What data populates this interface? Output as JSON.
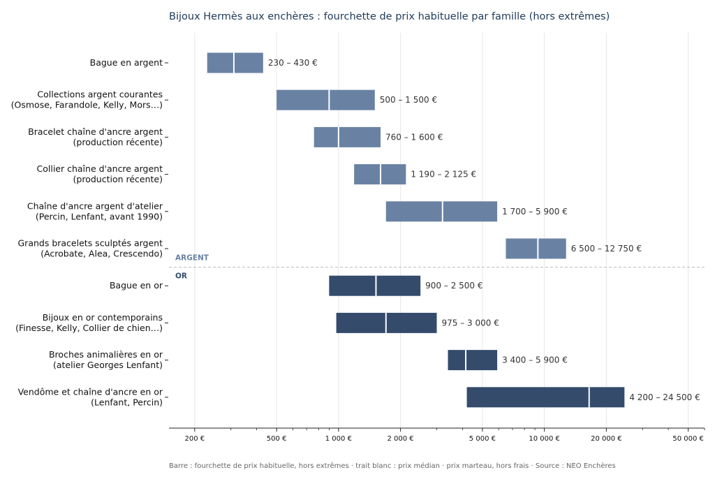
{
  "chart_data": {
    "type": "bar",
    "orientation": "horizontal-range",
    "title": "Bijoux Hermès aux enchères : fourchette de prix habituelle par famille (hors extrêmes)",
    "footer": "Barre : fourchette de prix habituelle, hors extrêmes · trait blanc : prix médian · prix marteau, hors frais · Source : NEO Enchères",
    "x_scale": "log",
    "xlim": [
      150,
      60000
    ],
    "x_ticks": [
      200,
      500,
      1000,
      2000,
      5000,
      10000,
      20000,
      50000
    ],
    "x_tick_labels": [
      "200 €",
      "500 €",
      "1 000 €",
      "2 000 €",
      "5 000 €",
      "10 000 €",
      "20 000 €",
      "50 000 €"
    ],
    "grid": "vertical, at major ticks",
    "colors": {
      "argent": "#6982a4",
      "or": "#344b6c",
      "median": "#ffffff",
      "grid": "#e6e6e6",
      "separator": "#bbbbbb"
    },
    "groups": [
      {
        "name": "ARGENT",
        "color": "#6982a4",
        "items": [
          {
            "label": [
              "Bague en argent"
            ],
            "low": 230,
            "high": 430,
            "median": 310,
            "value_label": "230 – 430 €"
          },
          {
            "label": [
              "Collections argent courantes",
              "(Osmose, Farandole, Kelly, Mors…)"
            ],
            "low": 500,
            "high": 1500,
            "median": 900,
            "value_label": "500 – 1 500 €"
          },
          {
            "label": [
              "Bracelet chaîne d'ancre argent",
              "(production récente)"
            ],
            "low": 760,
            "high": 1600,
            "median": 1000,
            "value_label": "760 – 1 600 €"
          },
          {
            "label": [
              "Collier chaîne d'ancre argent",
              "(production récente)"
            ],
            "low": 1190,
            "high": 2125,
            "median": 1600,
            "value_label": "1 190 – 2 125 €"
          },
          {
            "label": [
              "Chaîne d'ancre argent d'atelier",
              "(Percin, Lenfant, avant 1990)"
            ],
            "low": 1700,
            "high": 5900,
            "median": 3200,
            "value_label": "1 700 – 5 900 €"
          },
          {
            "label": [
              "Grands bracelets sculptés argent",
              "(Acrobate, Alea, Crescendo)"
            ],
            "low": 6500,
            "high": 12750,
            "median": 9300,
            "value_label": "6 500 – 12 750 €"
          }
        ]
      },
      {
        "name": "OR",
        "color": "#344b6c",
        "items": [
          {
            "label": [
              "Bague en or"
            ],
            "low": 900,
            "high": 2500,
            "median": 1520,
            "value_label": "900 – 2 500 €"
          },
          {
            "label": [
              "Bijoux en or contemporains",
              "(Finesse, Kelly, Collier de chien…)"
            ],
            "low": 975,
            "high": 3000,
            "median": 1700,
            "value_label": "975 – 3 000 €"
          },
          {
            "label": [
              "Broches animalières en or",
              "(atelier Georges Lenfant)"
            ],
            "low": 3400,
            "high": 5900,
            "median": 4150,
            "value_label": "3 400 – 5 900 €"
          },
          {
            "label": [
              "Vendôme et chaîne d'ancre en or",
              "(Lenfant, Percin)"
            ],
            "low": 4200,
            "high": 24500,
            "median": 16500,
            "value_label": "4 200 – 24 500 €"
          }
        ]
      }
    ]
  }
}
